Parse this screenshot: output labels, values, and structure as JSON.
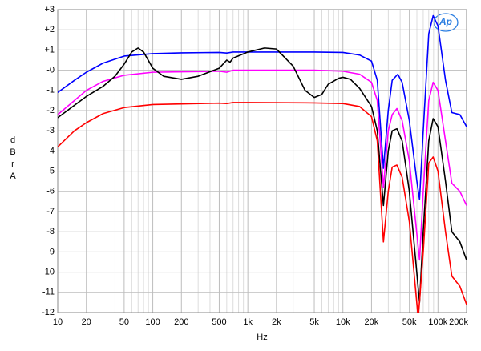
{
  "chart_data": {
    "type": "line",
    "xlabel": "Hz",
    "ylabel": "dBr A",
    "logo": "Ap",
    "xlog": true,
    "grid": true,
    "xlim": [
      10,
      200000
    ],
    "ylim": [
      -12,
      3
    ],
    "xticks": [
      10,
      20,
      50,
      100,
      200,
      500,
      {
        "value": 1000,
        "label": "1k"
      },
      {
        "value": 2000,
        "label": "2k"
      },
      {
        "value": 5000,
        "label": "5k"
      },
      {
        "value": 10000,
        "label": "10k"
      },
      {
        "value": 20000,
        "label": "20k"
      },
      {
        "value": 50000,
        "label": "50k"
      },
      {
        "value": 100000,
        "label": "100k"
      },
      {
        "value": 200000,
        "label": "200k"
      }
    ],
    "xticks_minor": [
      30,
      40,
      60,
      70,
      80,
      90,
      300,
      400,
      600,
      700,
      800,
      900,
      3000,
      4000,
      6000,
      7000,
      8000,
      9000,
      30000,
      40000,
      60000,
      70000,
      80000,
      90000
    ],
    "yticks": [
      {
        "value": 3,
        "label": "+3"
      },
      {
        "value": 2,
        "label": "+2"
      },
      {
        "value": 1,
        "label": "+1"
      },
      {
        "value": 0,
        "label": "-0"
      },
      -1,
      -2,
      -3,
      -4,
      -5,
      -6,
      -7,
      -8,
      -9,
      -10,
      -11,
      -12
    ],
    "series": [
      {
        "color": "#0000ff",
        "x": [
          10,
          15,
          20,
          30,
          50,
          100,
          200,
          500,
          600,
          700,
          1000,
          5000,
          10000,
          15000,
          20000,
          23000,
          26700,
          30000,
          33000,
          37800,
          42000,
          50000,
          60000,
          64000,
          70000,
          80000,
          89000,
          100000,
          120000,
          140000,
          170000,
          200000
        ],
        "values": [
          -1.1,
          -0.5,
          -0.1,
          0.35,
          0.7,
          0.82,
          0.86,
          0.88,
          0.85,
          0.9,
          0.9,
          0.9,
          0.88,
          0.75,
          0.45,
          -0.5,
          -4.86,
          -2,
          -0.5,
          -0.2,
          -0.6,
          -2.5,
          -5.5,
          -6.4,
          -3,
          1.8,
          2.7,
          2.2,
          -0.5,
          -2.1,
          -2.2,
          -2.8
        ]
      },
      {
        "color": "#ff00ff",
        "x": [
          10,
          15,
          20,
          30,
          50,
          100,
          500,
          600,
          700,
          1000,
          5000,
          10000,
          15000,
          20000,
          23000,
          26700,
          30000,
          33000,
          37000,
          42000,
          50000,
          64000,
          70000,
          80000,
          89000,
          100000,
          120000,
          140000,
          170000,
          200000
        ],
        "values": [
          -2.2,
          -1.5,
          -1.0,
          -0.55,
          -0.25,
          -0.1,
          -0.05,
          -0.1,
          0,
          0,
          0,
          -0.05,
          -0.2,
          -0.6,
          -1.5,
          -5.8,
          -3,
          -2.2,
          -1.9,
          -2.5,
          -4.5,
          -9.4,
          -6,
          -1.5,
          -0.6,
          -1.0,
          -3.5,
          -5.6,
          -6,
          -6.7
        ]
      },
      {
        "color": "#000000",
        "x": [
          10,
          20,
          30,
          40,
          50,
          60,
          70,
          80,
          100,
          130,
          200,
          300,
          500,
          600,
          650,
          700,
          1000,
          1500,
          2000,
          3000,
          4000,
          5000,
          6000,
          7000,
          9000,
          10000,
          12000,
          15000,
          20000,
          23000,
          26700,
          30000,
          33000,
          37000,
          42000,
          50000,
          64000,
          70000,
          80000,
          89000,
          100000,
          120000,
          140000,
          170000,
          200000
        ],
        "values": [
          -2.35,
          -1.3,
          -0.8,
          -0.3,
          0.3,
          0.9,
          1.1,
          0.9,
          0.1,
          -0.3,
          -0.45,
          -0.3,
          0.1,
          0.5,
          0.4,
          0.6,
          0.9,
          1.1,
          1.05,
          0.2,
          -1.0,
          -1.35,
          -1.2,
          -0.7,
          -0.4,
          -0.35,
          -0.45,
          -0.9,
          -1.8,
          -3,
          -6.7,
          -4,
          -3.0,
          -2.9,
          -3.5,
          -6.0,
          -11.5,
          -8,
          -3.5,
          -2.4,
          -2.8,
          -5.5,
          -8,
          -8.5,
          -9.4
        ]
      },
      {
        "color": "#ff0000",
        "x": [
          10,
          15,
          20,
          30,
          50,
          100,
          500,
          600,
          700,
          1000,
          5000,
          10000,
          15000,
          20000,
          23000,
          26700,
          30000,
          33000,
          37000,
          42000,
          50000,
          62000,
          70000,
          80000,
          89000,
          100000,
          120000,
          140000,
          170000,
          200000
        ],
        "values": [
          -3.8,
          -3.0,
          -2.6,
          -2.15,
          -1.85,
          -1.7,
          -1.63,
          -1.65,
          -1.6,
          -1.6,
          -1.62,
          -1.65,
          -1.8,
          -2.3,
          -3.5,
          -8.5,
          -6,
          -4.8,
          -4.7,
          -5.3,
          -7.5,
          -12.3,
          -9,
          -4.6,
          -4.3,
          -5,
          -8,
          -10.2,
          -10.7,
          -11.6
        ]
      }
    ]
  }
}
